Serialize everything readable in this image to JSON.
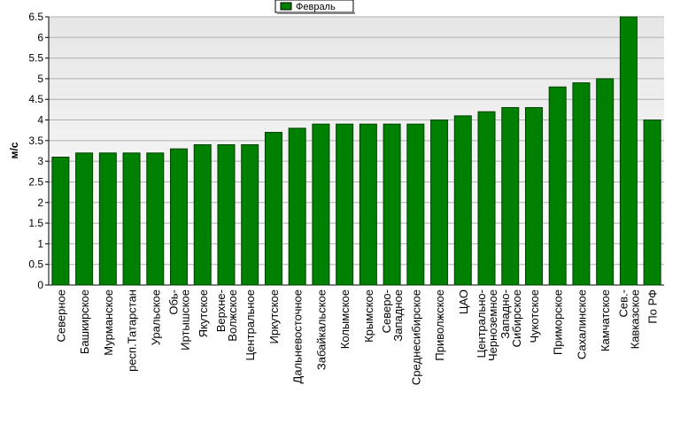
{
  "chart_data": {
    "type": "bar",
    "y_label": "м/с",
    "categories": [
      "Северное",
      "Башкирское",
      "Мурманское",
      "респ.Татарстан",
      "Уральское",
      "Обь-\nИртышское",
      "Якутское",
      "Верхне-\nВолжское",
      "Центральное",
      "Иркутское",
      "Дальневосточное",
      "Забайкальское",
      "Колымское",
      "Крымское",
      "Северо-\nЗападное",
      "Среднесибирское",
      "Приволжское",
      "ЦАО",
      "Центрально-\nЧерноземное",
      "Западно-\nСибирское",
      "Чукотское",
      "Приморское",
      "Сахалинское",
      "Камчатское",
      "Сев.-\nКавказское",
      "По РФ"
    ],
    "series": [
      {
        "name": "Февраль",
        "color": "#008000",
        "values": [
          3.1,
          3.2,
          3.2,
          3.2,
          3.2,
          3.3,
          3.4,
          3.4,
          3.4,
          3.7,
          3.8,
          3.9,
          3.9,
          3.9,
          3.9,
          3.9,
          4.0,
          4.1,
          4.2,
          4.3,
          4.3,
          4.8,
          4.9,
          5.0,
          6.5,
          4.0
        ]
      }
    ],
    "ylim": [
      0,
      6.5
    ],
    "yticks": [
      0,
      0.5,
      1,
      1.5,
      2,
      2.5,
      3,
      3.5,
      4,
      4.5,
      5,
      5.5,
      6,
      6.5
    ],
    "grid": true,
    "legend": "top"
  }
}
